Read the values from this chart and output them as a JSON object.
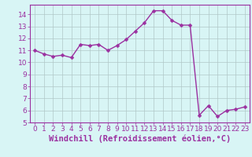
{
  "x": [
    0,
    1,
    2,
    3,
    4,
    5,
    6,
    7,
    8,
    9,
    10,
    11,
    12,
    13,
    14,
    15,
    16,
    17,
    18,
    19,
    20,
    21,
    22,
    23
  ],
  "y": [
    11.0,
    10.7,
    10.5,
    10.6,
    10.4,
    11.5,
    11.4,
    11.5,
    11.0,
    11.4,
    11.9,
    12.6,
    13.3,
    14.3,
    14.3,
    13.5,
    13.1,
    13.1,
    5.6,
    6.4,
    5.5,
    6.0,
    6.1,
    6.3
  ],
  "line_color": "#9b30a0",
  "marker": "D",
  "marker_size": 2.5,
  "bg_color": "#d8f5f5",
  "grid_color": "#b0c8c8",
  "xlabel": "Windchill (Refroidissement éolien,°C)",
  "ylabel": "",
  "xlim": [
    -0.5,
    23.5
  ],
  "ylim": [
    5,
    14.8
  ],
  "yticks": [
    5,
    6,
    7,
    8,
    9,
    10,
    11,
    12,
    13,
    14
  ],
  "xticks": [
    0,
    1,
    2,
    3,
    4,
    5,
    6,
    7,
    8,
    9,
    10,
    11,
    12,
    13,
    14,
    15,
    16,
    17,
    18,
    19,
    20,
    21,
    22,
    23
  ],
  "tick_label_size": 6.5,
  "xlabel_size": 7.5,
  "xlabel_color": "#9b30a0",
  "tick_color": "#9b30a0",
  "spine_color": "#9b30a0",
  "line_width": 1.0
}
